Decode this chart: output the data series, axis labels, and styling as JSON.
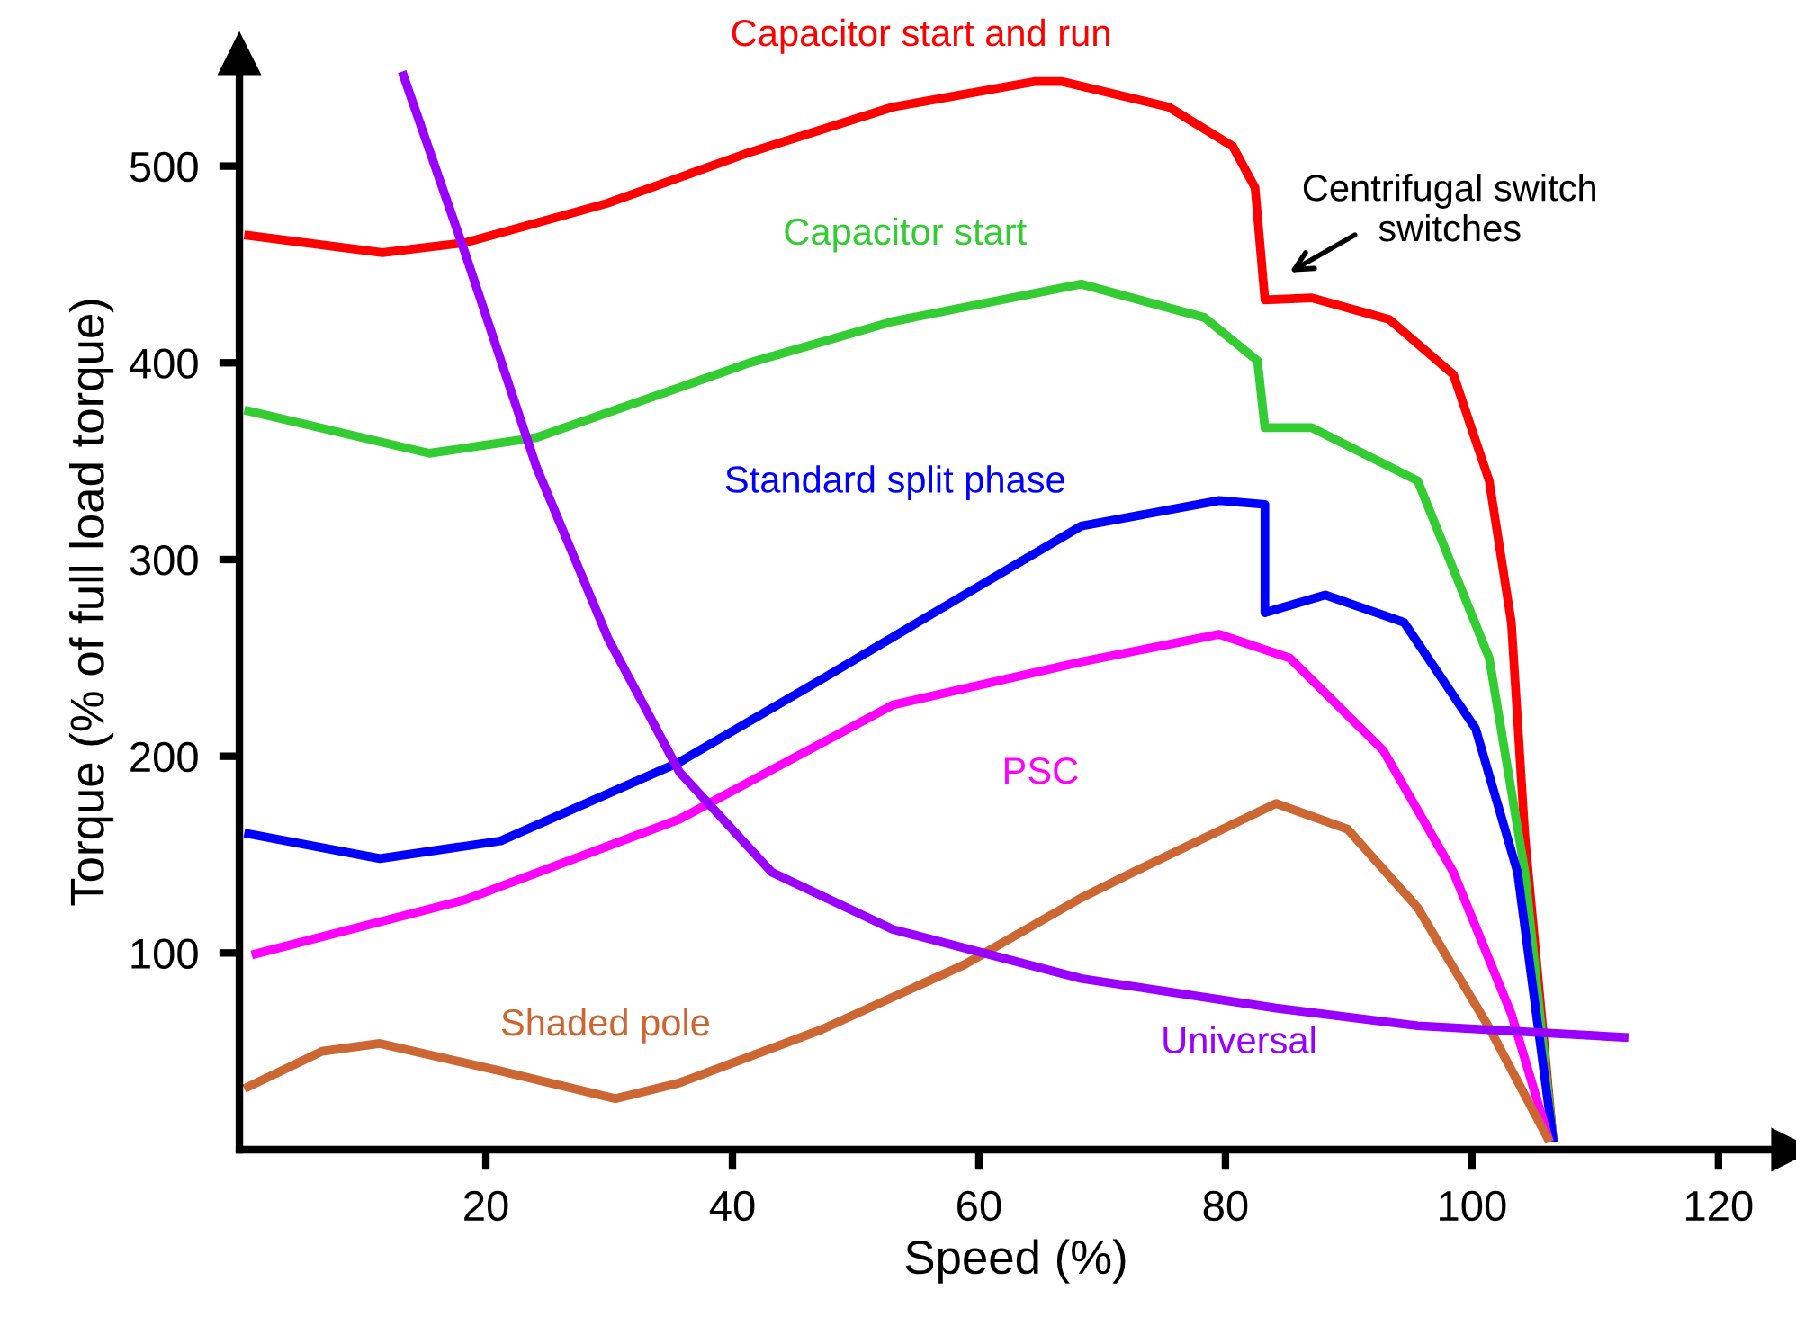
{
  "chart_data": {
    "type": "line",
    "xlabel": "Speed (%)",
    "ylabel": "Torque (% of full load torque)",
    "xlim": [
      0,
      126
    ],
    "ylim": [
      0,
      557
    ],
    "xticks": [
      20,
      40,
      60,
      80,
      100,
      120
    ],
    "yticks": [
      100,
      200,
      300,
      400,
      500
    ],
    "grid": false,
    "legend": false,
    "marker": "none",
    "line_style": "solid",
    "series": [
      {
        "name": "Capacitor start and run",
        "color": "#ff0000",
        "x": [
          0.4,
          11.6,
          18.3,
          29.8,
          41.4,
          53,
          64.6,
          66.7,
          75.4,
          80.6,
          82.4,
          83.2,
          87,
          93.3,
          98.5,
          101.4,
          103.2,
          104.3,
          106.6
        ],
        "values": [
          465,
          456,
          461,
          481,
          507,
          530,
          543,
          543,
          530,
          510,
          489,
          432,
          433,
          422,
          394,
          340,
          268,
          159,
          4
        ]
      },
      {
        "name": "Capacitor start",
        "color": "#33cc33",
        "x": [
          0.4,
          15.4,
          24.1,
          41.4,
          53,
          68.3,
          78.3,
          82.6,
          83.2,
          87,
          95.6,
          101.4,
          104.3,
          106.6
        ],
        "values": [
          376,
          354,
          362,
          400,
          421,
          440,
          423,
          401,
          367,
          367,
          340,
          250,
          141,
          4
        ]
      },
      {
        "name": "Standard split phase",
        "color": "#0000ff",
        "x": [
          0.4,
          11.4,
          21.2,
          35.7,
          47.2,
          58.8,
          68.3,
          79.5,
          83.2,
          83.2,
          88.1,
          94.5,
          100.3,
          103.7,
          106.6
        ],
        "values": [
          161,
          148,
          157,
          197,
          239,
          282,
          317,
          330,
          328,
          273,
          282,
          268,
          214,
          141,
          4
        ]
      },
      {
        "name": "PSC",
        "color": "#ff00ff",
        "x": [
          1,
          18.3,
          35.7,
          53,
          68.3,
          79.5,
          85.2,
          92.8,
          98.5,
          103.2,
          106.3
        ],
        "values": [
          99,
          127,
          168,
          226,
          248,
          262,
          250,
          203,
          141,
          69,
          4
        ]
      },
      {
        "name": "Shaded pole",
        "color": "#cc6633",
        "x": [
          0.4,
          6.7,
          11.4,
          21.2,
          30.5,
          35.7,
          47.2,
          58.8,
          68.3,
          72.5,
          84.1,
          89.9,
          95.6,
          101.4,
          106.3
        ],
        "values": [
          31,
          50,
          54,
          40,
          26,
          34,
          61,
          94,
          128,
          141,
          176,
          163,
          123,
          62,
          4
        ]
      },
      {
        "name": "Universal",
        "color": "#9900ff",
        "x": [
          13.2,
          18.3,
          24.1,
          29.9,
          35.7,
          43.2,
          53,
          68.3,
          72.5,
          84.1,
          95.6,
          112.7
        ],
        "values": [
          548,
          456,
          347,
          260,
          192,
          141,
          112,
          87,
          83,
          72,
          63,
          57
        ]
      }
    ],
    "annotations": [
      "Centrifugal switch\nswitches"
    ]
  }
}
